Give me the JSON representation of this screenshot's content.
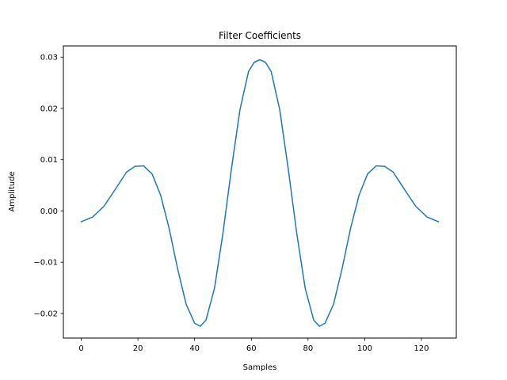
{
  "chart_data": {
    "type": "line",
    "title": "Filter Coefficients",
    "xlabel": "Samples",
    "ylabel": "Amplitude",
    "xlim": [
      -6.3,
      132.3
    ],
    "ylim": [
      -0.0248,
      0.0322
    ],
    "xticks": [
      0,
      20,
      40,
      60,
      80,
      100,
      120
    ],
    "yticks": [
      -0.02,
      -0.01,
      0.0,
      0.01,
      0.02,
      0.03
    ],
    "ytick_labels": [
      "−0.02",
      "−0.01",
      "0.00",
      "0.01",
      "0.02",
      "0.03"
    ],
    "grid": false,
    "series": [
      {
        "color": "#1f77b4",
        "x": [
          0,
          4,
          8,
          12,
          16,
          19,
          22,
          25,
          28,
          31,
          34,
          37,
          40,
          42,
          44,
          47,
          50,
          53,
          56,
          59,
          61,
          63,
          65,
          67,
          70,
          73,
          76,
          79,
          82,
          84,
          86,
          89,
          92,
          95,
          98,
          101,
          104,
          107,
          110,
          114,
          118,
          122,
          126
        ],
        "y": [
          -0.0021,
          -0.0012,
          0.0009,
          0.0042,
          0.0076,
          0.0087,
          0.0088,
          0.0072,
          0.0031,
          -0.0034,
          -0.0113,
          -0.0182,
          -0.0219,
          -0.0225,
          -0.0213,
          -0.0151,
          -0.0043,
          0.0083,
          0.0198,
          0.0272,
          0.029,
          0.0295,
          0.029,
          0.0272,
          0.0198,
          0.0083,
          -0.0043,
          -0.0151,
          -0.0213,
          -0.0225,
          -0.0219,
          -0.0182,
          -0.0113,
          -0.0034,
          0.0031,
          0.0072,
          0.0088,
          0.0087,
          0.0076,
          0.0042,
          0.0009,
          -0.0012,
          -0.0021
        ]
      }
    ]
  }
}
